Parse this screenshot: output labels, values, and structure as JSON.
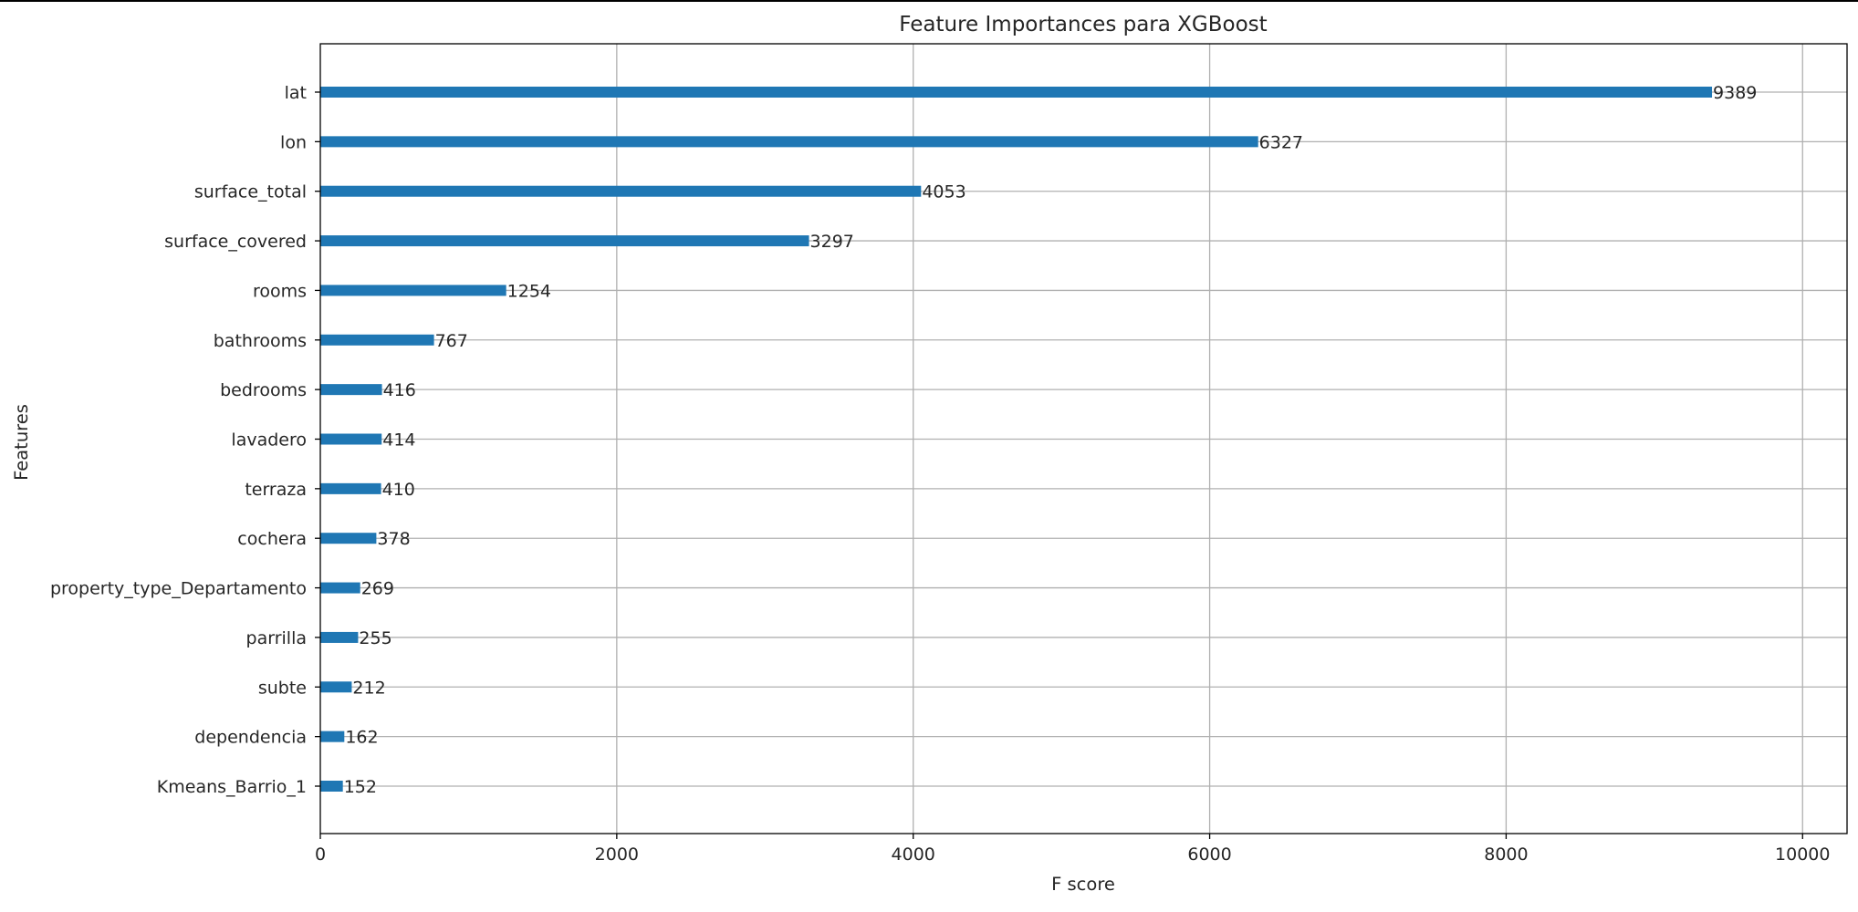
{
  "chart_data": {
    "type": "bar",
    "orientation": "horizontal",
    "title": "Feature Importances para XGBoost",
    "xlabel": "F score",
    "ylabel": "Features",
    "xlim": [
      0,
      10300
    ],
    "xticks": [
      0,
      2000,
      4000,
      6000,
      8000,
      10000
    ],
    "xtick_labels": [
      "0",
      "2000",
      "4000",
      "6000",
      "8000",
      "10000"
    ],
    "grid": true,
    "bar_color": "#1f77b4",
    "categories": [
      "lat",
      "lon",
      "surface_total",
      "surface_covered",
      "rooms",
      "bathrooms",
      "bedrooms",
      "lavadero",
      "terraza",
      "cochera",
      "property_type_Departamento",
      "parrilla",
      "subte",
      "dependencia",
      "Kmeans_Barrio_1"
    ],
    "values": [
      9389,
      6327,
      4053,
      3297,
      1254,
      767,
      416,
      414,
      410,
      378,
      269,
      255,
      212,
      162,
      152
    ],
    "value_labels": [
      "9389",
      "6327",
      "4053",
      "3297",
      "1254",
      "767",
      "416",
      "414",
      "410",
      "378",
      "269",
      "255",
      "212",
      "162",
      "152"
    ]
  }
}
